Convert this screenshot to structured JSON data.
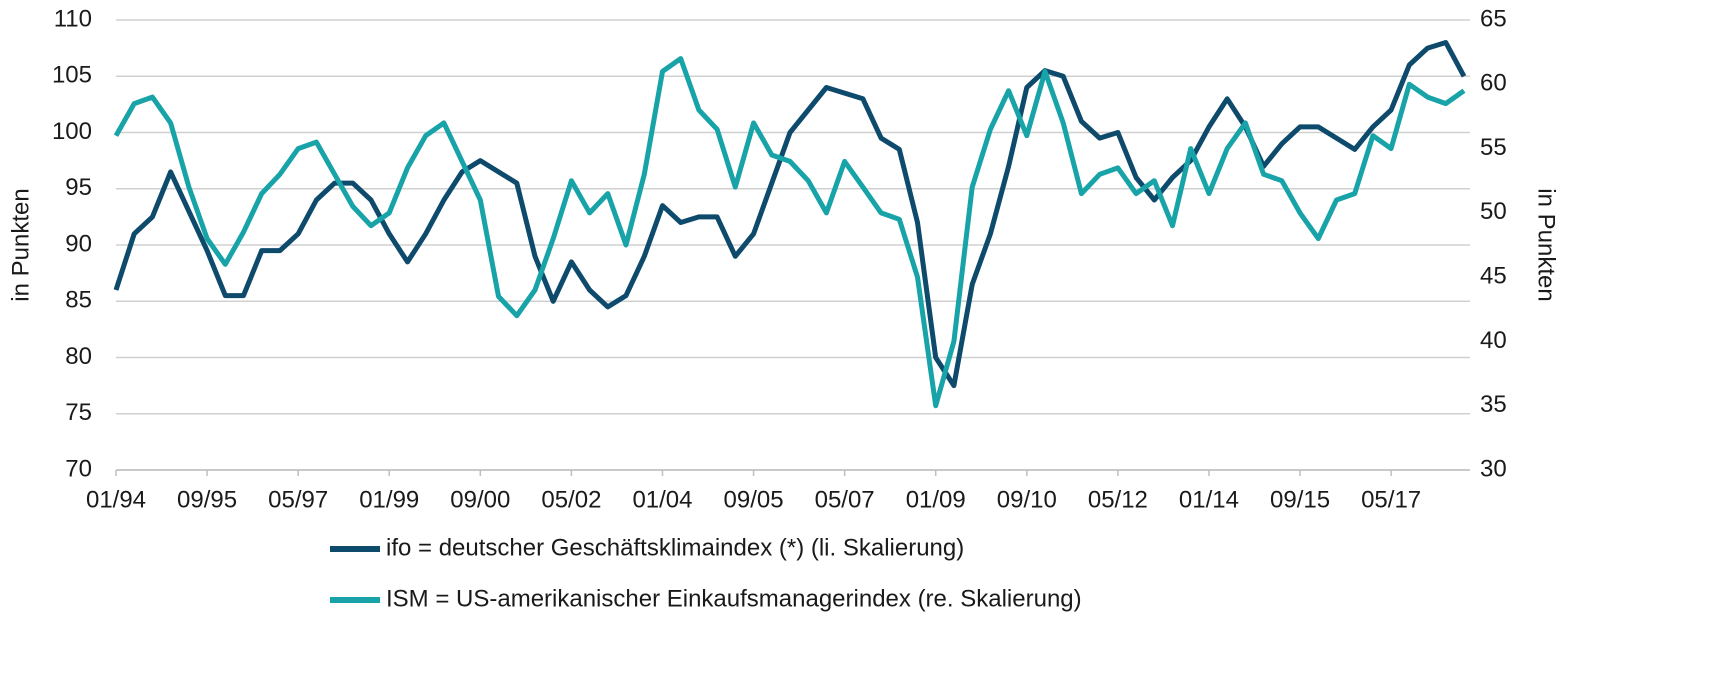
{
  "chart_data": {
    "type": "line",
    "y_label": "in Punkten",
    "y2_label": "in Punkten",
    "categories": [
      "01/94",
      null,
      null,
      null,
      null,
      "09/95",
      null,
      null,
      null,
      null,
      "05/97",
      null,
      null,
      null,
      null,
      "01/99",
      null,
      null,
      null,
      null,
      "09/00",
      null,
      null,
      null,
      null,
      "05/02",
      null,
      null,
      null,
      null,
      "01/04",
      null,
      null,
      null,
      null,
      "09/05",
      null,
      null,
      null,
      null,
      "05/07",
      null,
      null,
      null,
      null,
      "01/09",
      null,
      null,
      null,
      null,
      "09/10",
      null,
      null,
      null,
      null,
      "05/12",
      null,
      null,
      null,
      null,
      "01/14",
      null,
      null,
      null,
      null,
      "09/15",
      null,
      null,
      null,
      null,
      "05/17",
      null,
      null,
      null,
      null
    ],
    "series": [
      {
        "name": "ifo = deutscher Geschäftsklimaindex (*) (li. Skalierung)",
        "color": "#0d4a6b",
        "axis": "y",
        "values": [
          86,
          91,
          92.5,
          96.5,
          93,
          89.5,
          85.5,
          85.5,
          89.5,
          89.5,
          91,
          94,
          95.5,
          95.5,
          94,
          91,
          88.5,
          91,
          94,
          96.5,
          97.5,
          96.5,
          95.5,
          89,
          85,
          88.5,
          86,
          84.5,
          85.5,
          89,
          93.5,
          92,
          92.5,
          92.5,
          89,
          91,
          95.5,
          100,
          102,
          104,
          103.5,
          103,
          99.5,
          98.5,
          92,
          80,
          77.5,
          86.5,
          91,
          97,
          104,
          105.5,
          105,
          101,
          99.5,
          100,
          96,
          94,
          96,
          97.5,
          100.5,
          103,
          100.5,
          97,
          99,
          100.5,
          100.5,
          99.5,
          98.5,
          100.5,
          102,
          106,
          107.5,
          108,
          105
        ]
      },
      {
        "name": "ISM = US-amerikanischer Einkaufsmanagerindex (re. Skalierung)",
        "color": "#17a3a8",
        "axis": "y2",
        "values": [
          56,
          58.5,
          59,
          57,
          52,
          48,
          46,
          48.5,
          51.5,
          53,
          55,
          55.5,
          53,
          50.5,
          49,
          50,
          53.5,
          56,
          57,
          54,
          51,
          43.5,
          42,
          44,
          48,
          52.5,
          50,
          51.5,
          47.5,
          53,
          61,
          62,
          58,
          56.5,
          52,
          57,
          54.5,
          54,
          52.5,
          50,
          54,
          52,
          50,
          49.5,
          45,
          35,
          40,
          52,
          56.5,
          59.5,
          56,
          61,
          57,
          51.5,
          53,
          53.5,
          51.5,
          52.5,
          49,
          55,
          51.5,
          55,
          57,
          53,
          52.5,
          50,
          48,
          51,
          51.5,
          56,
          55,
          60,
          59,
          58.5,
          59.5
        ]
      }
    ],
    "ylim": [
      70,
      110
    ],
    "yticks": [
      70,
      75,
      80,
      85,
      90,
      95,
      100,
      105,
      110
    ],
    "y2lim": [
      30,
      65
    ],
    "y2ticks": [
      30,
      35,
      40,
      45,
      50,
      55,
      60,
      65
    ],
    "grid": true
  }
}
